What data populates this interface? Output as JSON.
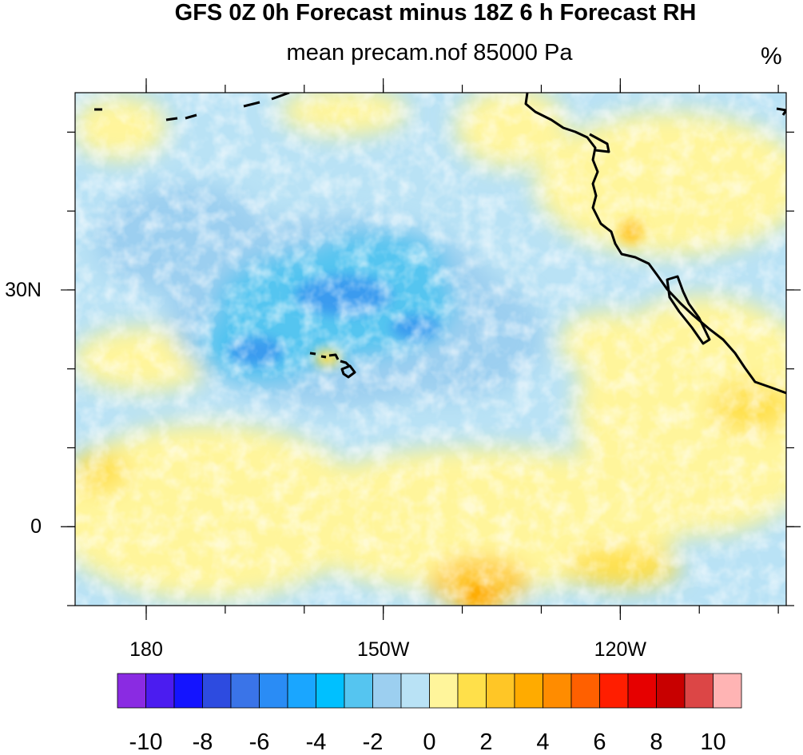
{
  "title": "GFS 0Z 0h Forecast minus 18Z 6 h Forecast RH",
  "subtitle": "mean precam.nof 85000 Pa",
  "units": "%",
  "map": {
    "lon_range": [
      -189,
      -99
    ],
    "lat_range": [
      -10,
      55
    ],
    "x_ticks": [
      {
        "lon": -180,
        "label": "180"
      },
      {
        "lon": -150,
        "label": "150W"
      },
      {
        "lon": -120,
        "label": "120W"
      }
    ],
    "y_ticks": [
      {
        "lat": 30,
        "label": "30N"
      },
      {
        "lat": 0,
        "label": "0"
      }
    ],
    "minor_lon_step": 10,
    "minor_lat_step": 10
  },
  "colorbar": {
    "colors": [
      "#8a2be2",
      "#4b1cf0",
      "#1414ff",
      "#2d4be0",
      "#3a74e8",
      "#2a8cf5",
      "#1aa6ff",
      "#00c0ff",
      "#55c5f0",
      "#9ccff0",
      "#b9e2f5",
      "#fff59b",
      "#ffe04a",
      "#ffc626",
      "#ffab00",
      "#ff8c00",
      "#ff6000",
      "#ff1e00",
      "#e60000",
      "#c80000",
      "#dc4646",
      "#ffb4b4"
    ],
    "labels": [
      "-10",
      "-8",
      "-6",
      "-4",
      "-2",
      "0",
      "2",
      "4",
      "6",
      "8",
      "10"
    ]
  }
}
